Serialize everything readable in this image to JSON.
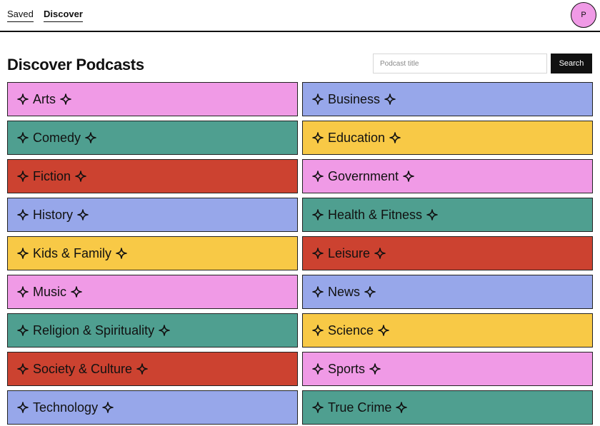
{
  "nav": {
    "saved_label": "Saved",
    "discover_label": "Discover",
    "avatar_initial": "P"
  },
  "page": {
    "title": "Discover Podcasts"
  },
  "search": {
    "placeholder": "Podcast title",
    "value": "",
    "button_label": "Search"
  },
  "colors": {
    "pink": "#f09ae6",
    "blue": "#97a7ea",
    "teal": "#4f9f90",
    "yellow": "#f8c946",
    "red": "#cc4230"
  },
  "categories": [
    {
      "label": "Arts",
      "color": "#f09ae6"
    },
    {
      "label": "Business",
      "color": "#97a7ea"
    },
    {
      "label": "Comedy",
      "color": "#4f9f90"
    },
    {
      "label": "Education",
      "color": "#f8c946"
    },
    {
      "label": "Fiction",
      "color": "#cc4230"
    },
    {
      "label": "Government",
      "color": "#f09ae6"
    },
    {
      "label": "History",
      "color": "#97a7ea"
    },
    {
      "label": "Health & Fitness",
      "color": "#4f9f90"
    },
    {
      "label": "Kids & Family",
      "color": "#f8c946"
    },
    {
      "label": "Leisure",
      "color": "#cc4230"
    },
    {
      "label": "Music",
      "color": "#f09ae6"
    },
    {
      "label": "News",
      "color": "#97a7ea"
    },
    {
      "label": "Religion & Spirituality",
      "color": "#4f9f90"
    },
    {
      "label": "Science",
      "color": "#f8c946"
    },
    {
      "label": "Society & Culture",
      "color": "#cc4230"
    },
    {
      "label": "Sports",
      "color": "#f09ae6"
    },
    {
      "label": "Technology",
      "color": "#97a7ea"
    },
    {
      "label": "True Crime",
      "color": "#4f9f90"
    }
  ],
  "icons": {
    "sparkle": "sparkle-icon"
  }
}
